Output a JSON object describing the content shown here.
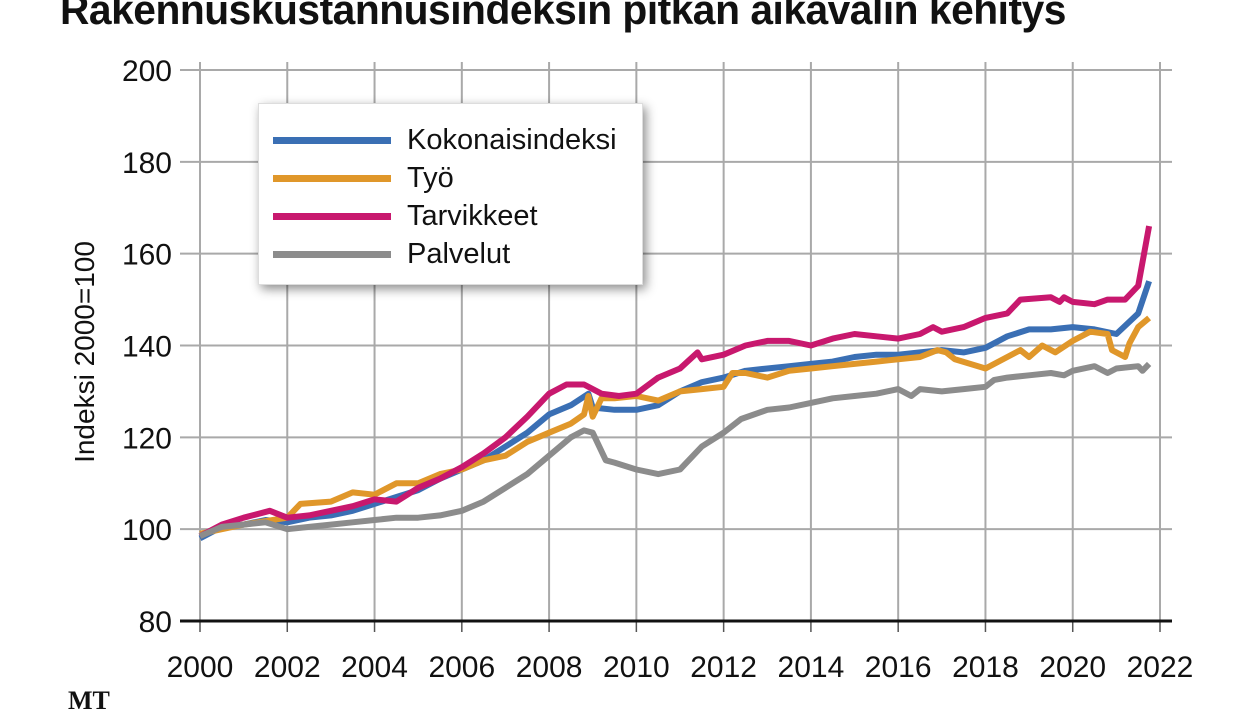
{
  "title": "Rakennuskustannusindeksin pitkän aikavälin kehitys",
  "source": "MT",
  "chart_data": {
    "type": "line",
    "title": "Rakennuskustannusindeksin pitkän aikavälin kehitys",
    "xlabel": "",
    "ylabel": "Indeksi 2000=100",
    "xlim": [
      2000,
      2022
    ],
    "ylim": [
      80,
      200
    ],
    "xticks": [
      "2000",
      "2002",
      "2004",
      "2006",
      "2008",
      "2010",
      "2012",
      "2014",
      "2016",
      "2018",
      "2020",
      "2022"
    ],
    "yticks": [
      "80",
      "100",
      "120",
      "140",
      "160",
      "180",
      "200"
    ],
    "grid": true,
    "legend_position": "top-left",
    "series": [
      {
        "name": "Kokonaisindeksi",
        "color": "#3a6fb4",
        "points": [
          [
            2000,
            98
          ],
          [
            2000.5,
            100.5
          ],
          [
            2001,
            101
          ],
          [
            2001.5,
            102
          ],
          [
            2002,
            101.5
          ],
          [
            2002.5,
            102.5
          ],
          [
            2003,
            103
          ],
          [
            2003.5,
            104
          ],
          [
            2004,
            105.5
          ],
          [
            2004.5,
            107
          ],
          [
            2005,
            108.5
          ],
          [
            2005.5,
            111
          ],
          [
            2006,
            113
          ],
          [
            2006.5,
            115
          ],
          [
            2007,
            118
          ],
          [
            2007.5,
            121
          ],
          [
            2008,
            125
          ],
          [
            2008.5,
            127
          ],
          [
            2008.9,
            129.5
          ],
          [
            2009,
            126.5
          ],
          [
            2009.5,
            126
          ],
          [
            2010,
            126
          ],
          [
            2010.5,
            127
          ],
          [
            2011,
            130
          ],
          [
            2011.5,
            132
          ],
          [
            2012,
            133
          ],
          [
            2012.5,
            134.5
          ],
          [
            2013,
            135
          ],
          [
            2013.5,
            135.5
          ],
          [
            2014,
            136
          ],
          [
            2014.5,
            136.5
          ],
          [
            2015,
            137.5
          ],
          [
            2015.5,
            138
          ],
          [
            2016,
            138
          ],
          [
            2016.5,
            138.5
          ],
          [
            2017,
            139
          ],
          [
            2017.5,
            138.5
          ],
          [
            2018,
            139.5
          ],
          [
            2018.5,
            142
          ],
          [
            2019,
            143.5
          ],
          [
            2019.5,
            143.5
          ],
          [
            2020,
            144
          ],
          [
            2020.5,
            143.5
          ],
          [
            2021,
            142.5
          ],
          [
            2021.5,
            147
          ],
          [
            2021.75,
            154
          ]
        ]
      },
      {
        "name": "Työ",
        "color": "#e0972a",
        "points": [
          [
            2000,
            99
          ],
          [
            2001,
            101
          ],
          [
            2002,
            102.5
          ],
          [
            2002.3,
            105.5
          ],
          [
            2003,
            106
          ],
          [
            2003.5,
            108
          ],
          [
            2004,
            107.5
          ],
          [
            2004.5,
            110
          ],
          [
            2005,
            110
          ],
          [
            2005.5,
            112
          ],
          [
            2006,
            113
          ],
          [
            2006.5,
            115
          ],
          [
            2007,
            116
          ],
          [
            2007.5,
            119
          ],
          [
            2008,
            121
          ],
          [
            2008.5,
            123
          ],
          [
            2008.8,
            125
          ],
          [
            2008.9,
            129
          ],
          [
            2009,
            124.5
          ],
          [
            2009.2,
            128.5
          ],
          [
            2009.5,
            128.5
          ],
          [
            2010,
            129
          ],
          [
            2010.5,
            128
          ],
          [
            2011,
            130
          ],
          [
            2011.5,
            130.5
          ],
          [
            2012,
            131
          ],
          [
            2012.2,
            134
          ],
          [
            2012.5,
            134
          ],
          [
            2013,
            133
          ],
          [
            2013.5,
            134.5
          ],
          [
            2014,
            135
          ],
          [
            2014.5,
            135.5
          ],
          [
            2015,
            136
          ],
          [
            2015.5,
            136.5
          ],
          [
            2016,
            137
          ],
          [
            2016.5,
            137.5
          ],
          [
            2016.9,
            139
          ],
          [
            2017.1,
            138.5
          ],
          [
            2017.3,
            137
          ],
          [
            2018,
            135
          ],
          [
            2018.5,
            137.5
          ],
          [
            2018.8,
            139
          ],
          [
            2019,
            137.5
          ],
          [
            2019.3,
            140
          ],
          [
            2019.6,
            138.5
          ],
          [
            2020,
            141
          ],
          [
            2020.4,
            143
          ],
          [
            2020.8,
            142.5
          ],
          [
            2020.9,
            139
          ],
          [
            2021.2,
            137.5
          ],
          [
            2021.3,
            140.5
          ],
          [
            2021.5,
            144
          ],
          [
            2021.75,
            146
          ]
        ]
      },
      {
        "name": "Tarvikkeet",
        "color": "#c8186e",
        "points": [
          [
            2000,
            98.5
          ],
          [
            2000.5,
            101
          ],
          [
            2001,
            102.5
          ],
          [
            2001.6,
            104
          ],
          [
            2002,
            102.5
          ],
          [
            2002.5,
            103
          ],
          [
            2003,
            104
          ],
          [
            2003.5,
            105
          ],
          [
            2004,
            106.5
          ],
          [
            2004.5,
            106
          ],
          [
            2005,
            109
          ],
          [
            2005.5,
            111
          ],
          [
            2006,
            113.5
          ],
          [
            2006.5,
            116.5
          ],
          [
            2007,
            120
          ],
          [
            2007.5,
            124.5
          ],
          [
            2008,
            129.5
          ],
          [
            2008.4,
            131.5
          ],
          [
            2008.8,
            131.5
          ],
          [
            2009.2,
            129.5
          ],
          [
            2009.6,
            129
          ],
          [
            2010,
            129.5
          ],
          [
            2010.5,
            133
          ],
          [
            2011,
            135
          ],
          [
            2011.4,
            138.5
          ],
          [
            2011.5,
            137
          ],
          [
            2012,
            138
          ],
          [
            2012.5,
            140
          ],
          [
            2013,
            141
          ],
          [
            2013.5,
            141
          ],
          [
            2014,
            140
          ],
          [
            2014.5,
            141.5
          ],
          [
            2015,
            142.5
          ],
          [
            2015.5,
            142
          ],
          [
            2016,
            141.5
          ],
          [
            2016.5,
            142.5
          ],
          [
            2016.8,
            144
          ],
          [
            2017,
            143
          ],
          [
            2017.5,
            144
          ],
          [
            2018,
            146
          ],
          [
            2018.5,
            147
          ],
          [
            2018.8,
            150
          ],
          [
            2019.5,
            150.5
          ],
          [
            2019.7,
            149.5
          ],
          [
            2019.8,
            150.5
          ],
          [
            2020,
            149.5
          ],
          [
            2020.5,
            149
          ],
          [
            2020.8,
            150
          ],
          [
            2021.2,
            150
          ],
          [
            2021.5,
            153
          ],
          [
            2021.75,
            166
          ]
        ]
      },
      {
        "name": "Palvelut",
        "color": "#8c8c8c",
        "points": [
          [
            2000,
            98.5
          ],
          [
            2000.5,
            100.5
          ],
          [
            2001,
            101
          ],
          [
            2001.5,
            101.5
          ],
          [
            2002,
            100
          ],
          [
            2002.5,
            100.5
          ],
          [
            2003,
            101
          ],
          [
            2003.5,
            101.5
          ],
          [
            2004,
            102
          ],
          [
            2004.5,
            102.5
          ],
          [
            2005,
            102.5
          ],
          [
            2005.5,
            103
          ],
          [
            2006,
            104
          ],
          [
            2006.5,
            106
          ],
          [
            2007,
            109
          ],
          [
            2007.5,
            112
          ],
          [
            2008,
            116
          ],
          [
            2008.5,
            120
          ],
          [
            2008.8,
            121.5
          ],
          [
            2009,
            121
          ],
          [
            2009.3,
            115
          ],
          [
            2009.5,
            114.5
          ],
          [
            2010,
            113
          ],
          [
            2010.5,
            112
          ],
          [
            2011,
            113
          ],
          [
            2011.3,
            116
          ],
          [
            2011.5,
            118
          ],
          [
            2012,
            121
          ],
          [
            2012.4,
            124
          ],
          [
            2013,
            126
          ],
          [
            2013.5,
            126.5
          ],
          [
            2014,
            127.5
          ],
          [
            2014.5,
            128.5
          ],
          [
            2015,
            129
          ],
          [
            2015.5,
            129.5
          ],
          [
            2016,
            130.5
          ],
          [
            2016.3,
            129
          ],
          [
            2016.5,
            130.5
          ],
          [
            2017,
            130
          ],
          [
            2017.5,
            130.5
          ],
          [
            2018,
            131
          ],
          [
            2018.2,
            132.5
          ],
          [
            2018.5,
            133
          ],
          [
            2019,
            133.5
          ],
          [
            2019.5,
            134
          ],
          [
            2019.8,
            133.5
          ],
          [
            2020,
            134.5
          ],
          [
            2020.5,
            135.5
          ],
          [
            2020.8,
            134
          ],
          [
            2021,
            135
          ],
          [
            2021.5,
            135.5
          ],
          [
            2021.6,
            134.5
          ],
          [
            2021.75,
            136
          ]
        ]
      }
    ]
  }
}
